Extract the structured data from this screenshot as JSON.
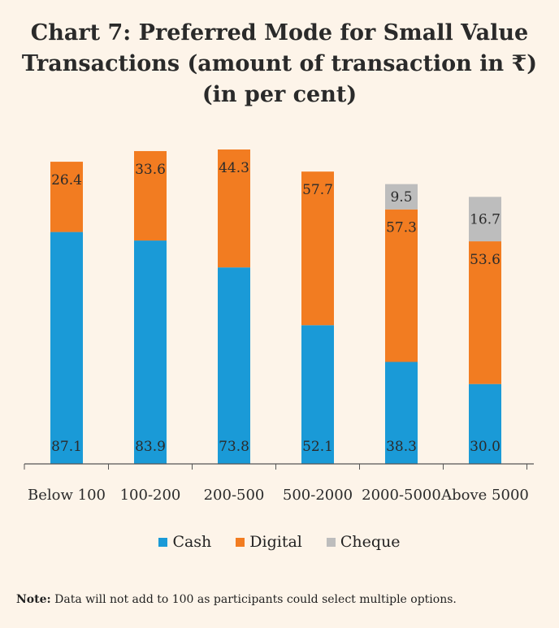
{
  "title": {
    "line1": "Chart 7: Preferred Mode for Small Value",
    "line2": "Transactions  (amount of transaction in ₹)",
    "line3": "(in per cent)"
  },
  "chart_data": {
    "type": "bar",
    "stacked": true,
    "title": "Chart 7: Preferred Mode for Small Value Transactions (amount of transaction in ₹) (in per cent)",
    "categories": [
      "Below 100",
      "100-200",
      "200-500",
      "500-2000",
      "2000-5000",
      "Above 5000"
    ],
    "series": [
      {
        "name": "Cash",
        "color": "#1a9ad7",
        "values": [
          87.1,
          83.9,
          73.8,
          52.1,
          38.3,
          30.0
        ],
        "labels": [
          "87.1",
          "83.9",
          "73.8",
          "52.1",
          "38.3",
          "30.0"
        ]
      },
      {
        "name": "Digital",
        "color": "#f27c21",
        "values": [
          26.4,
          33.6,
          44.3,
          57.7,
          57.3,
          53.6
        ],
        "labels": [
          "26.4",
          "33.6",
          "44.3",
          "57.7",
          "57.3",
          "53.6"
        ]
      },
      {
        "name": "Cheque",
        "color": "#bdbdbd",
        "values": [
          0,
          0,
          0,
          0,
          9.5,
          16.7
        ],
        "labels": [
          "",
          "",
          "",
          "",
          "9.5",
          "16.7"
        ]
      }
    ],
    "legend_position": "bottom",
    "note": "Data will not add to 100 as participants could select multiple options."
  },
  "legend": [
    {
      "label": "Cash",
      "color": "#1a9ad7"
    },
    {
      "label": "Digital",
      "color": "#f27c21"
    },
    {
      "label": "Cheque",
      "color": "#bdbdbd"
    }
  ],
  "note": {
    "prefix": "Note:",
    "text": " Data will not add to 100 as participants could select multiple options."
  }
}
